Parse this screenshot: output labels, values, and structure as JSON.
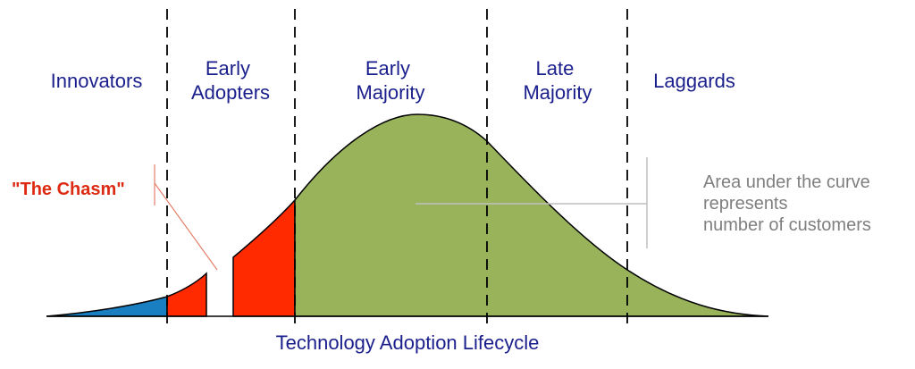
{
  "segments": [
    {
      "lines": [
        "Innovators"
      ],
      "color": "#1a7fc1"
    },
    {
      "lines": [
        "Early",
        "Adopters"
      ],
      "color": "#ff2a00"
    },
    {
      "lines": [
        "Early",
        "Majority"
      ],
      "color": "#98b35a"
    },
    {
      "lines": [
        "Late",
        "Majority"
      ],
      "color": "#98b35a"
    },
    {
      "lines": [
        "Laggards"
      ],
      "color": "#98b35a"
    }
  ],
  "chasm_label": "\"The Chasm\"",
  "note": {
    "lines": [
      "Area under the curve",
      "represents",
      "number of customers"
    ]
  },
  "footer": "Technology Adoption Lifecycle",
  "colors": {
    "label_text": "#1a1f8c",
    "chasm": "#dd2a12",
    "note_text": "#7f7f7f",
    "innovators_fill": "#1a7fc1",
    "early_adopters_fill": "#ff2a00",
    "majority_fill": "#98b35a",
    "divider": "#000000"
  }
}
